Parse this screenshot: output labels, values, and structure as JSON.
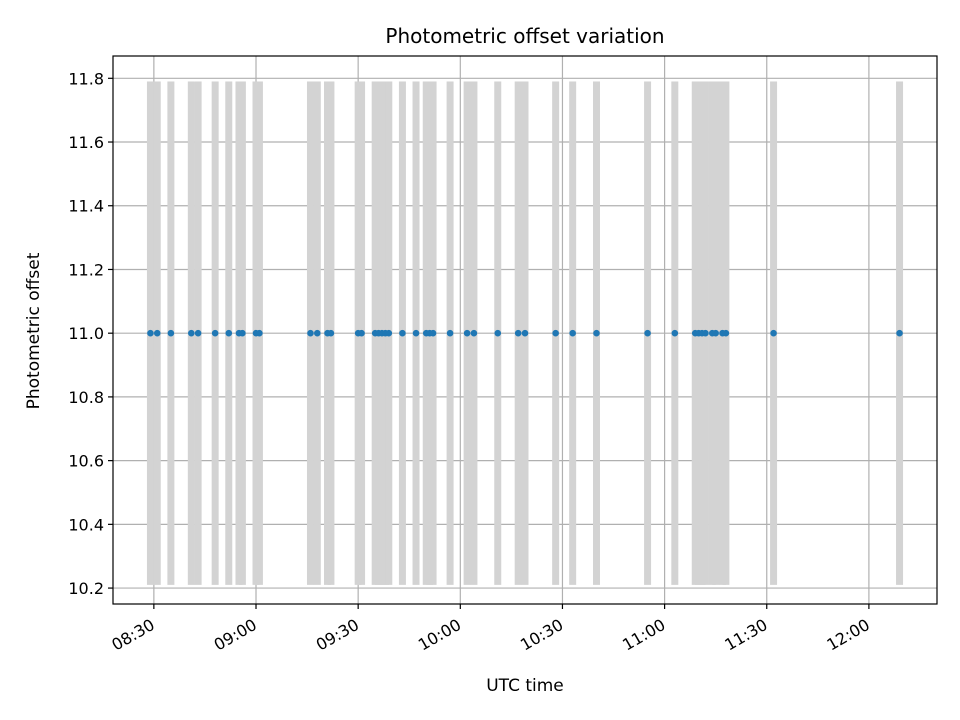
{
  "chart_data": {
    "type": "scatter",
    "title": "Photometric offset variation",
    "xlabel": "UTC time",
    "ylabel": "Photometric offset",
    "x_axis_kind": "time",
    "xlim": [
      "08:18",
      "12:20"
    ],
    "ylim": [
      10.15,
      11.87
    ],
    "x_ticks": [
      "08:30",
      "09:00",
      "09:30",
      "10:00",
      "10:30",
      "11:00",
      "11:30",
      "12:00"
    ],
    "y_ticks": [
      "10.2",
      "10.4",
      "10.6",
      "10.8",
      "11.0",
      "11.2",
      "11.4",
      "11.6",
      "11.8"
    ],
    "grid": true,
    "legend": "none",
    "series": [
      {
        "color": "#1f77b4",
        "marker": "dot",
        "x": [
          "08:29",
          "08:31",
          "08:35",
          "08:41",
          "08:43",
          "08:48",
          "08:52",
          "08:55",
          "08:56",
          "09:00",
          "09:01",
          "09:16",
          "09:18",
          "09:21",
          "09:22",
          "09:30",
          "09:31",
          "09:35",
          "09:36",
          "09:37",
          "09:38",
          "09:39",
          "09:43",
          "09:47",
          "09:50",
          "09:51",
          "09:52",
          "09:57",
          "10:02",
          "10:04",
          "10:11",
          "10:17",
          "10:19",
          "10:28",
          "10:33",
          "10:40",
          "10:55",
          "11:03",
          "11:09",
          "11:10",
          "11:11",
          "11:12",
          "11:14",
          "11:15",
          "11:17",
          "11:18",
          "11:32",
          "12:09"
        ],
        "y": [
          11.0,
          11.0,
          11.0,
          11.0,
          11.0,
          11.0,
          11.0,
          11.0,
          11.0,
          11.0,
          11.0,
          11.0,
          11.0,
          11.0,
          11.0,
          11.0,
          11.0,
          11.0,
          11.0,
          11.0,
          11.0,
          11.0,
          11.0,
          11.0,
          11.0,
          11.0,
          11.0,
          11.0,
          11.0,
          11.0,
          11.0,
          11.0,
          11.0,
          11.0,
          11.0,
          11.0,
          11.0,
          11.0,
          11.0,
          11.0,
          11.0,
          11.0,
          11.0,
          11.0,
          11.0,
          11.0,
          11.0,
          11.0
        ]
      }
    ],
    "vertical_bands": {
      "color": "#d3d3d3",
      "y_range": [
        10.21,
        11.79
      ],
      "x": [
        "08:29",
        "08:31",
        "08:35",
        "08:41",
        "08:43",
        "08:48",
        "08:52",
        "08:55",
        "08:56",
        "09:00",
        "09:01",
        "09:16",
        "09:18",
        "09:21",
        "09:22",
        "09:30",
        "09:31",
        "09:35",
        "09:36",
        "09:37",
        "09:38",
        "09:39",
        "09:43",
        "09:47",
        "09:50",
        "09:51",
        "09:52",
        "09:57",
        "10:02",
        "10:04",
        "10:11",
        "10:17",
        "10:19",
        "10:28",
        "10:33",
        "10:40",
        "10:55",
        "11:03",
        "11:09",
        "11:10",
        "11:11",
        "11:12",
        "11:14",
        "11:15",
        "11:17",
        "11:18",
        "11:32",
        "12:09"
      ]
    }
  }
}
